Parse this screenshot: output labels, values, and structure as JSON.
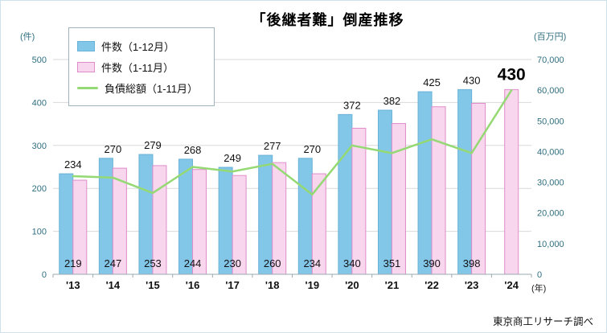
{
  "page": {
    "title": "「後継者難」倒産推移",
    "left_unit": "(件)",
    "right_unit": "(百万円)",
    "x_unit": "(年)",
    "footer": "東京商工リサーチ調べ"
  },
  "legend": {
    "items": [
      {
        "label": "件数（1-12月）",
        "type": "bar",
        "color": "#82c6e8"
      },
      {
        "label": "件数（1-11月）",
        "type": "bar",
        "color": "#f7d6ee",
        "border": "#e08cc9"
      },
      {
        "label": "負債総額（1-11月）",
        "type": "line",
        "color": "#94d973"
      }
    ]
  },
  "chart_data": {
    "type": "bar+line",
    "title": "「後継者難」倒産推移",
    "categories": [
      "'13",
      "'14",
      "'15",
      "'16",
      "'17",
      "'18",
      "'19",
      "'20",
      "'21",
      "'22",
      "'23",
      "'24"
    ],
    "series": [
      {
        "name": "件数（1-12月）",
        "type": "bar",
        "axis": "left",
        "color": "#82c6e8",
        "border": "#69b2d8",
        "values": [
          234,
          270,
          279,
          268,
          249,
          277,
          270,
          372,
          382,
          425,
          430,
          null
        ]
      },
      {
        "name": "件数（1-11月）",
        "type": "bar",
        "axis": "left",
        "color": "#f7d6ee",
        "border": "#e08cc9",
        "values": [
          219,
          247,
          253,
          244,
          230,
          260,
          234,
          340,
          351,
          390,
          398,
          430
        ]
      },
      {
        "name": "負債総額（1-11月）",
        "type": "line",
        "axis": "right",
        "color": "#94d973",
        "values": [
          32000,
          31500,
          26500,
          35000,
          33500,
          36000,
          26000,
          42000,
          39500,
          44000,
          39500,
          60000
        ]
      }
    ],
    "left_axis": {
      "label": "(件)",
      "min": 0,
      "max": 500,
      "step": 100,
      "ticks": [
        0,
        100,
        200,
        300,
        400,
        500
      ]
    },
    "right_axis": {
      "label": "(百万円)",
      "min": 0,
      "max": 70000,
      "step": 10000,
      "ticks": [
        0,
        10000,
        20000,
        30000,
        40000,
        50000,
        60000,
        70000
      ]
    },
    "x_axis_label": "(年)",
    "grid": true,
    "legend_position": "top-left",
    "highlight": {
      "category": "'24",
      "value": 430
    }
  }
}
